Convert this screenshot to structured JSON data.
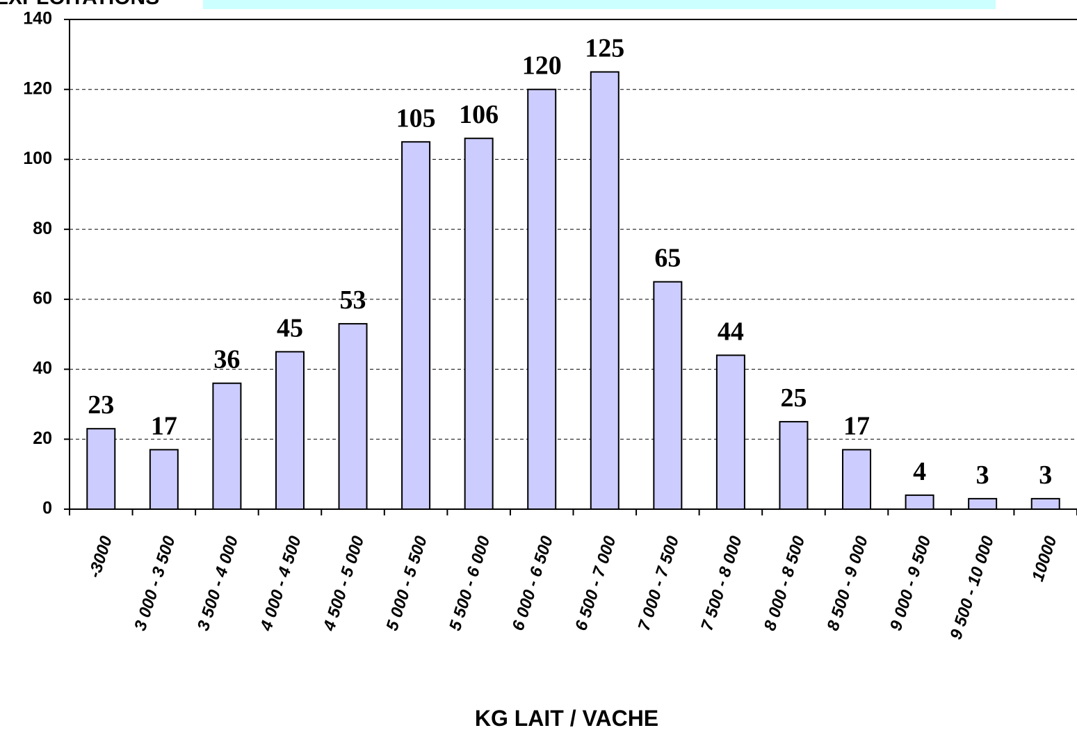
{
  "chart_data": {
    "type": "bar",
    "title": "EXPLOITATIONS",
    "x_label": "KG LAIT / VACHE",
    "categories": [
      "-3000",
      "3 000 - 3 500",
      "3 500 - 4 000",
      "4 000 - 4 500",
      "4 500 - 5 000",
      "5 000 - 5 500",
      "5 500 - 6 000",
      "6 000 - 6 500",
      "6 500 - 7 000",
      "7 000 - 7 500",
      "7 500 - 8 000",
      "8 000 - 8 500",
      "8 500 - 9 000",
      "9 000 - 9 500",
      "9 500 - 10 000",
      "10000"
    ],
    "values": [
      23,
      17,
      36,
      45,
      53,
      105,
      106,
      120,
      125,
      65,
      44,
      25,
      17,
      4,
      3,
      3
    ],
    "color": "#ccccff",
    "ylim": [
      0,
      140
    ],
    "yticks": [
      0,
      20,
      40,
      60,
      80,
      100,
      120,
      140
    ],
    "grid": true
  }
}
